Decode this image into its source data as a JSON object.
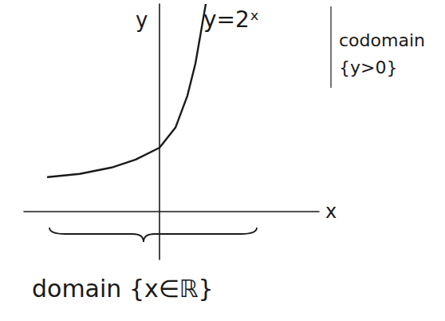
{
  "chart_data": {
    "type": "line",
    "x_label": "x",
    "y_label": "y",
    "x": [
      -3.5,
      -2.5,
      -1.5,
      -0.75,
      0,
      0.5,
      0.875,
      1.125,
      1.3,
      1.45
    ],
    "series": [
      {
        "name": "y=2ˣ",
        "color": "#1a1a1a",
        "values": [
          1.08,
          1.18,
          1.38,
          1.63,
          2,
          2.63,
          3.63,
          4.63,
          5.63,
          6.5
        ]
      }
    ],
    "annotations": [
      "codomain",
      "{y>0}",
      "domain {x∈ℝ}"
    ],
    "xlim": [
      -4.25,
      5
    ],
    "ylim": [
      -1.5,
      6.5
    ],
    "xticks": [],
    "yticks": [],
    "grid": false,
    "tick_labels": false
  }
}
